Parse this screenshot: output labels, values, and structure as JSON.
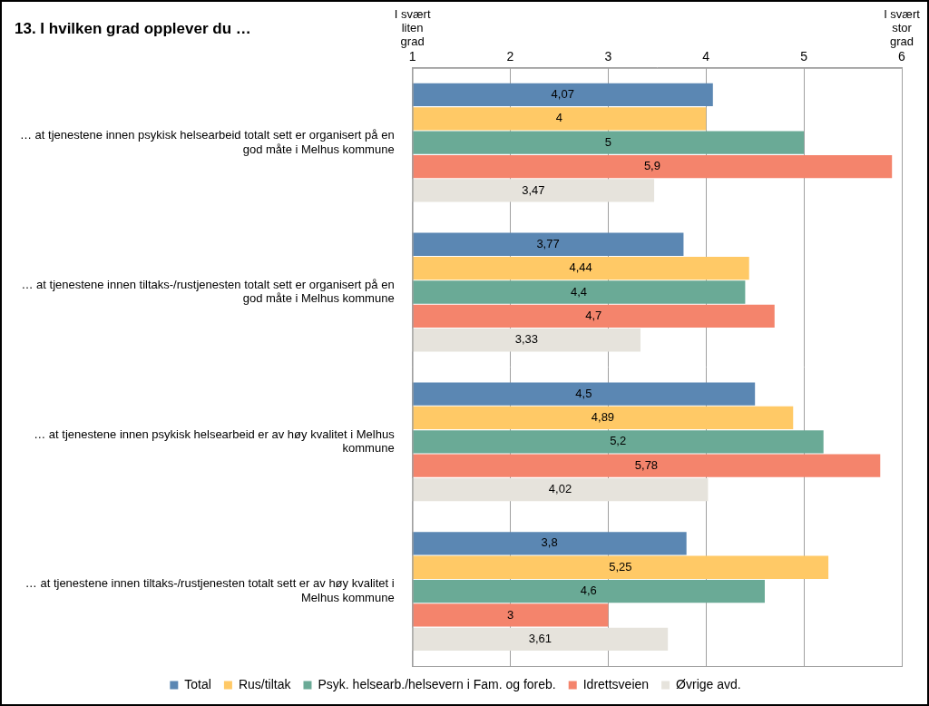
{
  "chart_data": {
    "type": "bar",
    "orientation": "horizontal",
    "title": "13. I hvilken grad opplever du …",
    "categories": [
      "… at tjenestene innen psykisk helsearbeid totalt sett er organisert på en god måte i Melhus kommune",
      "… at tjenestene innen tiltaks-/rustjenesten totalt sett er organisert på en god måte i Melhus kommune",
      "… at tjenestene innen psykisk helsearbeid er av høy kvalitet i Melhus kommune",
      "… at tjenestene innen tiltaks-/rustjenesten totalt sett er av høy kvalitet i Melhus kommune"
    ],
    "series": [
      {
        "name": "Total",
        "color": "#5b87b3",
        "values": [
          4.07,
          3.77,
          4.5,
          3.8
        ],
        "value_labels": [
          "4,07",
          "3,77",
          "4,5",
          "3,8"
        ]
      },
      {
        "name": "Rus/tiltak",
        "color": "#ffc966",
        "values": [
          4,
          4.44,
          4.89,
          5.25
        ],
        "value_labels": [
          "4",
          "4,44",
          "4,89",
          "5,25"
        ]
      },
      {
        "name": "Psyk. helsearb./helsevern i Fam. og foreb.",
        "color": "#6aaa96",
        "values": [
          5,
          4.4,
          5.2,
          4.6
        ],
        "value_labels": [
          "5",
          "4,4",
          "5,2",
          "4,6"
        ]
      },
      {
        "name": "Idrettsveien",
        "color": "#f4846c",
        "values": [
          5.9,
          4.7,
          5.78,
          3
        ],
        "value_labels": [
          "5,9",
          "4,7",
          "5,78",
          "3"
        ]
      },
      {
        "name": "Øvrige avd.",
        "color": "#e6e3dc",
        "values": [
          3.47,
          3.33,
          4.02,
          3.61
        ],
        "value_labels": [
          "3,47",
          "3,33",
          "4,02",
          "3,61"
        ]
      }
    ],
    "xlim": [
      1,
      6
    ],
    "xticks": [
      1,
      2,
      3,
      4,
      5,
      6
    ],
    "grid": true,
    "legend": "bottom",
    "data_labels": true,
    "annotations": [
      {
        "text": "I svært liten grad",
        "x": 1
      },
      {
        "text": "I svært stor grad",
        "x": 6
      }
    ]
  }
}
